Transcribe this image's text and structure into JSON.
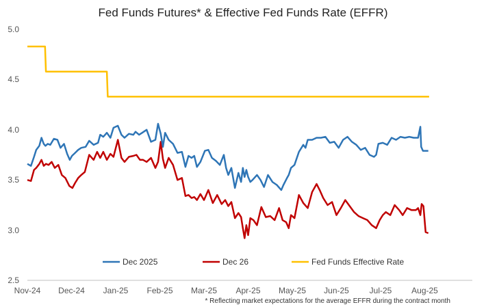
{
  "chart_data": {
    "type": "line",
    "title": "Fed Funds Futures* & Effective Fed Funds Rate (EFFR)",
    "footnote": "* Reflecting market expectations for the average EFFR during the contract month",
    "xlabel": "",
    "ylabel": "",
    "ylim": [
      2.5,
      5.0
    ],
    "yticks": [
      "5.0",
      "4.5",
      "4.0",
      "3.5",
      "3.0",
      "2.5"
    ],
    "x_range": [
      0,
      9.1
    ],
    "xticks": [
      {
        "label": "Nov-24",
        "x": 0
      },
      {
        "label": "Dec-24",
        "x": 1
      },
      {
        "label": "Jan-25",
        "x": 2
      },
      {
        "label": "Feb-25",
        "x": 3
      },
      {
        "label": "Mar-25",
        "x": 4
      },
      {
        "label": "Apr-25",
        "x": 5
      },
      {
        "label": "May-25",
        "x": 6
      },
      {
        "label": "Jun-25",
        "x": 7
      },
      {
        "label": "Jul-25",
        "x": 8
      },
      {
        "label": "Aug-25",
        "x": 9
      }
    ],
    "grid": false,
    "legend_position": "bottom",
    "series": [
      {
        "name": "Dec 2025",
        "color": "#2e75b6",
        "x": [
          0,
          0.08,
          0.15,
          0.2,
          0.27,
          0.32,
          0.37,
          0.41,
          0.46,
          0.52,
          0.6,
          0.68,
          0.75,
          0.83,
          0.9,
          0.96,
          1.01,
          1.08,
          1.15,
          1.22,
          1.32,
          1.4,
          1.5,
          1.6,
          1.65,
          1.72,
          1.8,
          1.88,
          1.95,
          2.05,
          2.13,
          2.2,
          2.3,
          2.4,
          2.45,
          2.53,
          2.6,
          2.7,
          2.8,
          2.9,
          2.96,
          3.02,
          3.07,
          3.12,
          3.2,
          3.3,
          3.4,
          3.5,
          3.58,
          3.65,
          3.72,
          3.78,
          3.84,
          3.92,
          4.02,
          4.1,
          4.18,
          4.27,
          4.36,
          4.45,
          4.5,
          4.55,
          4.62,
          4.7,
          4.78,
          4.84,
          4.88,
          4.92,
          4.96,
          5.0,
          5.05,
          5.1,
          5.2,
          5.28,
          5.36,
          5.45,
          5.55,
          5.65,
          5.75,
          5.8,
          5.88,
          5.92,
          5.97,
          6.05,
          6.15,
          6.25,
          6.3,
          6.35,
          6.45,
          6.55,
          6.65,
          6.75,
          6.85,
          6.95,
          7.05,
          7.15,
          7.25,
          7.35,
          7.45,
          7.55,
          7.65,
          7.75,
          7.85,
          7.9,
          7.95,
          8.05,
          8.15,
          8.25,
          8.35,
          8.45,
          8.55,
          8.65,
          8.75,
          8.85,
          8.9,
          8.92,
          8.96,
          9.02,
          9.08
        ],
        "values": [
          3.66,
          3.64,
          3.73,
          3.8,
          3.84,
          3.92,
          3.86,
          3.84,
          3.86,
          3.85,
          3.91,
          3.9,
          3.82,
          3.86,
          3.76,
          3.7,
          3.74,
          3.77,
          3.8,
          3.82,
          3.83,
          3.89,
          3.85,
          3.87,
          3.95,
          3.93,
          3.97,
          3.92,
          4.02,
          4.04,
          3.95,
          3.92,
          3.96,
          3.95,
          3.98,
          3.95,
          3.97,
          4.0,
          3.88,
          3.9,
          4.06,
          3.96,
          3.83,
          3.97,
          3.9,
          3.86,
          3.77,
          3.78,
          3.63,
          3.74,
          3.72,
          3.74,
          3.63,
          3.68,
          3.79,
          3.8,
          3.72,
          3.69,
          3.65,
          3.75,
          3.62,
          3.55,
          3.62,
          3.42,
          3.57,
          3.48,
          3.62,
          3.53,
          3.6,
          3.53,
          3.48,
          3.5,
          3.55,
          3.5,
          3.43,
          3.55,
          3.48,
          3.45,
          3.4,
          3.45,
          3.52,
          3.55,
          3.62,
          3.65,
          3.78,
          3.85,
          3.82,
          3.9,
          3.9,
          3.92,
          3.92,
          3.93,
          3.87,
          3.88,
          3.82,
          3.9,
          3.93,
          3.88,
          3.85,
          3.8,
          3.82,
          3.75,
          3.73,
          3.75,
          3.86,
          3.87,
          3.85,
          3.92,
          3.9,
          3.93,
          3.92,
          3.93,
          3.92,
          3.92,
          4.03,
          3.83,
          3.79,
          3.79,
          3.79
        ]
      },
      {
        "name": "Dec 26",
        "color": "#c00000",
        "x": [
          0,
          0.08,
          0.15,
          0.2,
          0.27,
          0.32,
          0.37,
          0.42,
          0.48,
          0.55,
          0.62,
          0.7,
          0.78,
          0.86,
          0.95,
          1.02,
          1.08,
          1.15,
          1.22,
          1.3,
          1.4,
          1.5,
          1.58,
          1.65,
          1.72,
          1.8,
          1.88,
          1.95,
          2.05,
          2.13,
          2.2,
          2.3,
          2.4,
          2.47,
          2.55,
          2.62,
          2.7,
          2.8,
          2.9,
          2.96,
          3.02,
          3.07,
          3.12,
          3.2,
          3.3,
          3.4,
          3.5,
          3.58,
          3.65,
          3.72,
          3.78,
          3.84,
          3.92,
          4.0,
          4.1,
          4.2,
          4.3,
          4.4,
          4.48,
          4.55,
          4.62,
          4.7,
          4.78,
          4.84,
          4.88,
          4.92,
          4.96,
          5.0,
          5.05,
          5.12,
          5.2,
          5.3,
          5.4,
          5.5,
          5.6,
          5.7,
          5.78,
          5.86,
          5.92,
          5.97,
          6.05,
          6.15,
          6.25,
          6.35,
          6.45,
          6.55,
          6.62,
          6.7,
          6.8,
          6.9,
          7.0,
          7.1,
          7.2,
          7.3,
          7.4,
          7.5,
          7.6,
          7.7,
          7.8,
          7.9,
          7.98,
          8.05,
          8.12,
          8.22,
          8.32,
          8.42,
          8.5,
          8.6,
          8.7,
          8.8,
          8.85,
          8.9,
          8.93,
          8.97,
          9.02,
          9.08
        ],
        "values": [
          3.5,
          3.49,
          3.6,
          3.62,
          3.66,
          3.7,
          3.64,
          3.66,
          3.65,
          3.68,
          3.62,
          3.65,
          3.55,
          3.52,
          3.44,
          3.42,
          3.47,
          3.52,
          3.55,
          3.58,
          3.75,
          3.7,
          3.78,
          3.72,
          3.78,
          3.7,
          3.76,
          3.73,
          3.9,
          3.72,
          3.68,
          3.73,
          3.74,
          3.75,
          3.7,
          3.7,
          3.68,
          3.72,
          3.62,
          3.68,
          3.88,
          3.71,
          3.62,
          3.72,
          3.65,
          3.5,
          3.52,
          3.34,
          3.35,
          3.32,
          3.33,
          3.3,
          3.36,
          3.3,
          3.4,
          3.27,
          3.35,
          3.26,
          3.3,
          3.24,
          3.28,
          3.12,
          3.17,
          3.13,
          3.02,
          2.92,
          3.05,
          2.95,
          3.12,
          3.1,
          3.05,
          3.23,
          3.13,
          3.14,
          3.1,
          3.22,
          3.1,
          3.08,
          3.02,
          3.15,
          3.12,
          3.35,
          3.27,
          3.22,
          3.38,
          3.46,
          3.4,
          3.32,
          3.25,
          3.28,
          3.15,
          3.22,
          3.3,
          3.24,
          3.18,
          3.14,
          3.12,
          3.1,
          3.05,
          3.02,
          3.1,
          3.15,
          3.18,
          3.15,
          3.25,
          3.2,
          3.15,
          3.22,
          3.2,
          3.2,
          3.22,
          3.15,
          3.26,
          3.24,
          2.98,
          2.97
        ]
      },
      {
        "name": "Fed Funds Effective Rate",
        "color": "#ffc000",
        "x": [
          0,
          0.4,
          0.42,
          1.8,
          1.82,
          9.1
        ],
        "values": [
          4.83,
          4.83,
          4.58,
          4.58,
          4.33,
          4.33
        ]
      }
    ]
  }
}
